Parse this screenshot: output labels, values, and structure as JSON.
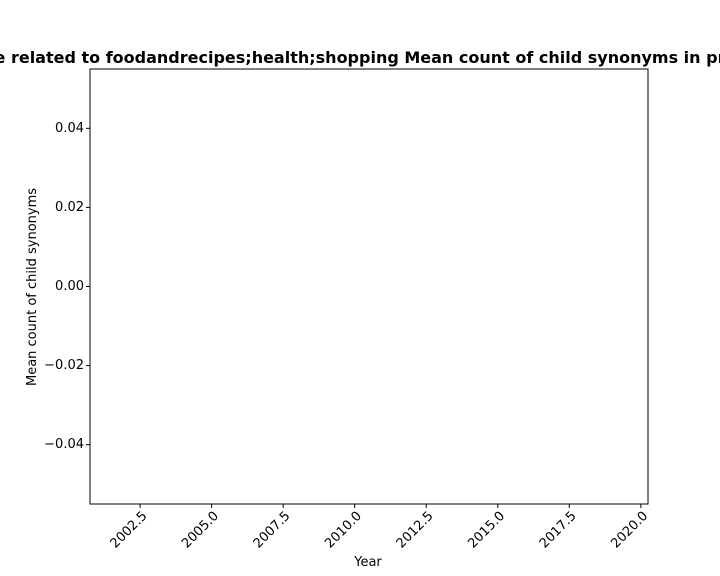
{
  "chart_data": {
    "type": "line",
    "title": "e related to foodandrecipes;health;shopping Mean count of child synonyms in pr",
    "xlabel": "Year",
    "ylabel": "Mean count of child synonyms",
    "xlim": [
      2000.75,
      2020.25
    ],
    "ylim": [
      -0.055,
      0.055
    ],
    "xticks": [
      2002.5,
      2005.0,
      2007.5,
      2010.0,
      2012.5,
      2015.0,
      2017.5,
      2020.0
    ],
    "xtick_labels": [
      "2002.5",
      "2005.0",
      "2007.5",
      "2010.0",
      "2012.5",
      "2015.0",
      "2017.5",
      "2020.0"
    ],
    "yticks": [
      0.04,
      0.02,
      0.0,
      -0.02,
      -0.04
    ],
    "ytick_labels": [
      "0.04",
      "0.02",
      "0.00",
      "−0.02",
      "−0.04"
    ],
    "series": [],
    "grid": false
  }
}
